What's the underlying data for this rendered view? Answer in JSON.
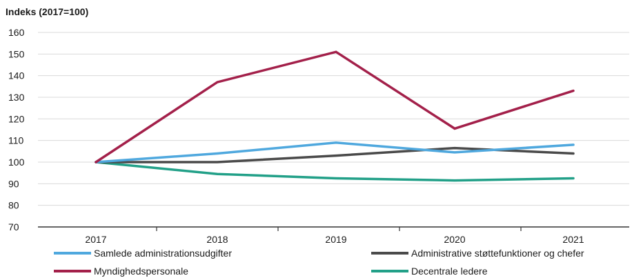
{
  "chart_data": {
    "type": "line",
    "ylabel": "Indeks (2017=100)",
    "categories": [
      "2017",
      "2018",
      "2019",
      "2020",
      "2021"
    ],
    "ylim": [
      70,
      160
    ],
    "yticks": [
      70,
      80,
      90,
      100,
      110,
      120,
      130,
      140,
      150,
      160
    ],
    "grid": "horizontal",
    "legend_position": "bottom",
    "series": [
      {
        "name": "Samlede administrationsudgifter",
        "color": "#4fa8de",
        "values": [
          100,
          104,
          109,
          104.5,
          108
        ]
      },
      {
        "name": "Administrative støttefunktioner og chefer",
        "color": "#4a4a4a",
        "values": [
          100,
          100,
          103,
          106.5,
          104
        ]
      },
      {
        "name": "Myndighedspersonale",
        "color": "#a3204a",
        "values": [
          100,
          137,
          151,
          115.5,
          133
        ]
      },
      {
        "name": "Decentrale ledere",
        "color": "#22a088",
        "values": [
          100,
          94.5,
          92.5,
          91.5,
          92.5
        ]
      }
    ]
  }
}
